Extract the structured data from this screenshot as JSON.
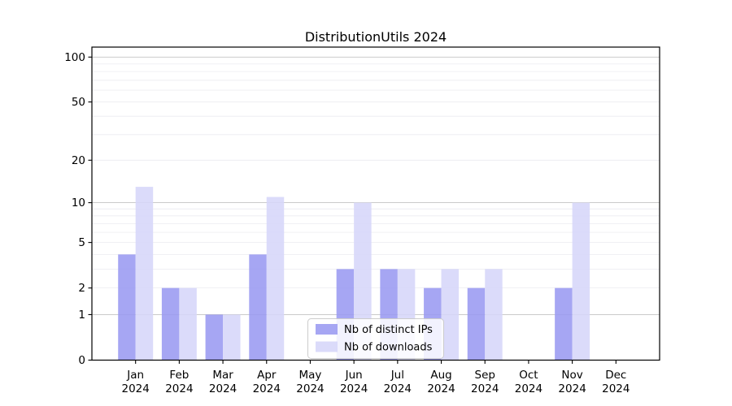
{
  "window": {
    "title": "DistributionUtils 2024"
  },
  "chart_data": {
    "type": "bar",
    "title": "DistributionUtils 2024",
    "categories": [
      "Jan 2024",
      "Feb 2024",
      "Mar 2024",
      "Apr 2024",
      "May 2024",
      "Jun 2024",
      "Jul 2024",
      "Aug 2024",
      "Sep 2024",
      "Oct 2024",
      "Nov 2024",
      "Dec 2024"
    ],
    "x_tick_labels": [
      {
        "month": "Jan",
        "year": "2024"
      },
      {
        "month": "Feb",
        "year": "2024"
      },
      {
        "month": "Mar",
        "year": "2024"
      },
      {
        "month": "Apr",
        "year": "2024"
      },
      {
        "month": "May",
        "year": "2024"
      },
      {
        "month": "Jun",
        "year": "2024"
      },
      {
        "month": "Jul",
        "year": "2024"
      },
      {
        "month": "Aug",
        "year": "2024"
      },
      {
        "month": "Sep",
        "year": "2024"
      },
      {
        "month": "Oct",
        "year": "2024"
      },
      {
        "month": "Nov",
        "year": "2024"
      },
      {
        "month": "Dec",
        "year": "2024"
      }
    ],
    "series": [
      {
        "name": "Nb of distinct IPs",
        "color": "#9a9af1",
        "values": [
          4,
          2,
          1,
          4,
          0,
          3,
          3,
          2,
          2,
          0,
          2,
          0
        ]
      },
      {
        "name": "Nb of downloads",
        "color": "#d6d6f9",
        "values": [
          13,
          2,
          1,
          11,
          0,
          10,
          3,
          3,
          3,
          0,
          10,
          0
        ]
      }
    ],
    "xlabel": "",
    "ylabel": "",
    "y_axis": {
      "scale": "log1p",
      "ylim": [
        0,
        117
      ],
      "ticks": [
        {
          "value": 0,
          "label": "0"
        },
        {
          "value": 1,
          "label": "1"
        },
        {
          "value": 2,
          "label": "2"
        },
        {
          "value": 5,
          "label": "5"
        },
        {
          "value": 10,
          "label": "10"
        },
        {
          "value": 20,
          "label": "20"
        },
        {
          "value": 50,
          "label": "50"
        },
        {
          "value": 100,
          "label": "100"
        }
      ],
      "major_gridlines": [
        1,
        10,
        100
      ],
      "minor_gridlines": [
        2,
        3,
        4,
        5,
        6,
        7,
        8,
        9,
        20,
        30,
        40,
        50,
        60,
        70,
        80,
        90
      ]
    },
    "grid": true,
    "legend": {
      "position": "lower center",
      "labels": [
        "Nb of distinct IPs",
        "Nb of downloads"
      ]
    }
  },
  "colors": {
    "background": "#ffffff",
    "spine": "#000000",
    "major_grid": "#c3c3c3",
    "minor_grid": "#ececf0",
    "legend_border": "#cccccc",
    "legend_fill": "#ffffff"
  }
}
